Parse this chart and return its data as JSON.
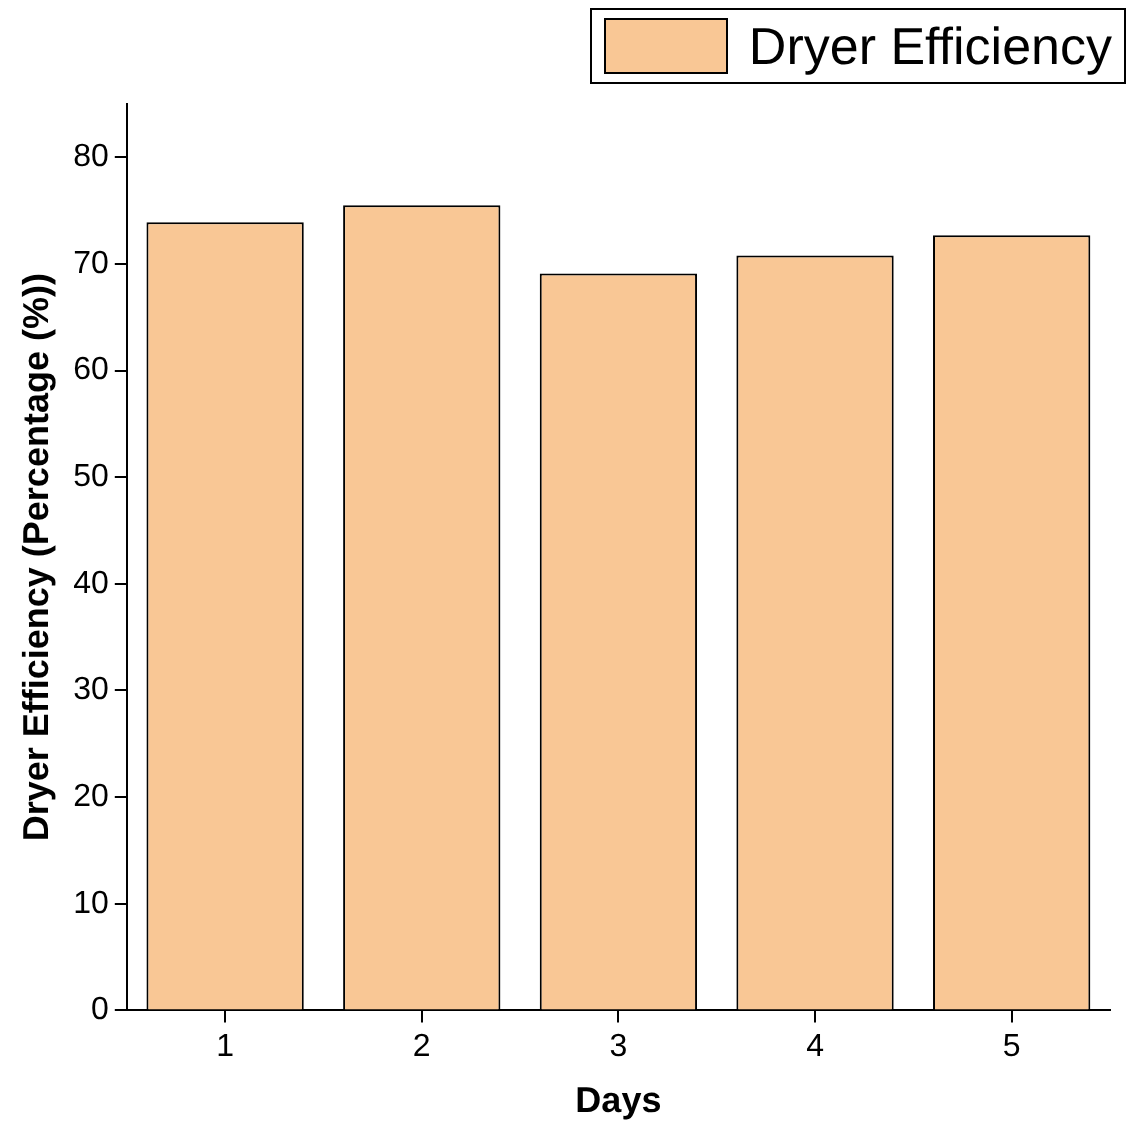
{
  "chart_data": {
    "type": "bar",
    "xlabel": "Days",
    "ylabel": "Dryer Efficiency (Percentage (%))",
    "categories": [
      "1",
      "2",
      "3",
      "4",
      "5"
    ],
    "series": [
      {
        "name": "Dryer Efficiency",
        "color": "#f9c795",
        "values": [
          73.9,
          75.5,
          69.1,
          70.8,
          72.7
        ]
      }
    ],
    "ylim": [
      0,
      85
    ],
    "yticks": [
      0,
      10,
      20,
      30,
      40,
      50,
      60,
      70,
      80
    ],
    "grid": false,
    "legend": "top right"
  }
}
